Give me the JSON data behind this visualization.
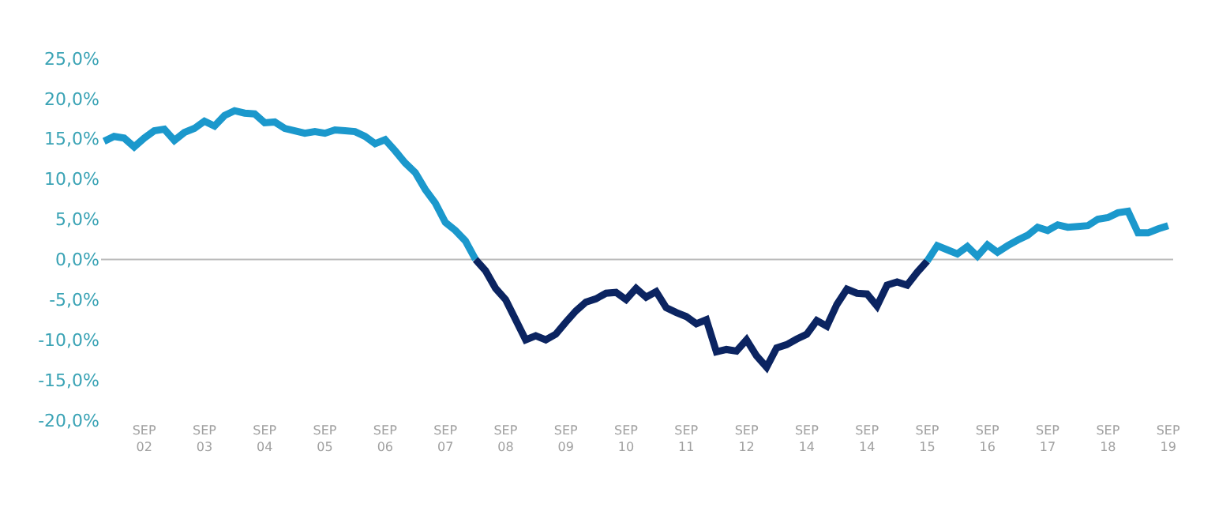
{
  "chart_data": {
    "type": "line",
    "categories": [
      null,
      null,
      null,
      null,
      "SEP\n02",
      null,
      null,
      null,
      null,
      null,
      "SEP\n03",
      null,
      null,
      null,
      null,
      null,
      "SEP\n04",
      null,
      null,
      null,
      null,
      null,
      "SEP\n05",
      null,
      null,
      null,
      null,
      null,
      "SEP\n06",
      null,
      null,
      null,
      null,
      null,
      "SEP\n07",
      null,
      null,
      null,
      null,
      null,
      "SEP\n08",
      null,
      null,
      null,
      null,
      null,
      "SEP\n09",
      null,
      null,
      null,
      null,
      null,
      "SEP\n10",
      null,
      null,
      null,
      null,
      null,
      "SEP\n11",
      null,
      null,
      null,
      null,
      null,
      "SEP\n12",
      null,
      null,
      null,
      null,
      null,
      "SEP\n14",
      null,
      null,
      null,
      null,
      null,
      "SEP\n14",
      null,
      null,
      null,
      null,
      null,
      "SEP\n15",
      null,
      null,
      null,
      null,
      null,
      "SEP\n16",
      null,
      null,
      null,
      null,
      null,
      "SEP\n17",
      null,
      null,
      null,
      null,
      null,
      "SEP\n18",
      null,
      null,
      null,
      null,
      null,
      "SEP\n19"
    ],
    "series": [
      {
        "color": "#1b98cc",
        "values": [
          14.7,
          15.3,
          15.1,
          14.0,
          15.1,
          16.0,
          16.2,
          14.8,
          15.8,
          16.3,
          17.2,
          16.6,
          17.9,
          18.5,
          18.2,
          18.1,
          17.0,
          17.1,
          16.3,
          16.0,
          15.7,
          15.9,
          15.7,
          16.1,
          16.0,
          15.9,
          15.3,
          14.4,
          14.9,
          13.5,
          12.0,
          10.8,
          8.7,
          7.0,
          4.6,
          3.6,
          2.3,
          0.0,
          null,
          null,
          null,
          null,
          null,
          null,
          null,
          null,
          null,
          null,
          null,
          null,
          null,
          null,
          null,
          null,
          null,
          null,
          null,
          null,
          null,
          null,
          null,
          null,
          null,
          null,
          null,
          null,
          null,
          null,
          null,
          null,
          null,
          null,
          null,
          null,
          null,
          null,
          null,
          null,
          null,
          null,
          null,
          null,
          null,
          null,
          null,
          null,
          null,
          null,
          null,
          null,
          null,
          null,
          null,
          null,
          null,
          null,
          null,
          null,
          null,
          null,
          null,
          null,
          null,
          null,
          null,
          null,
          null
        ]
      },
      {
        "color": "#0b2461",
        "values": [
          null,
          null,
          null,
          null,
          null,
          null,
          null,
          null,
          null,
          null,
          null,
          null,
          null,
          null,
          null,
          null,
          null,
          null,
          null,
          null,
          null,
          null,
          null,
          null,
          null,
          null,
          null,
          null,
          null,
          null,
          null,
          null,
          null,
          null,
          null,
          null,
          null,
          0.0,
          -1.4,
          -3.6,
          -5.0,
          -7.5,
          -10.0,
          -9.5,
          -10.0,
          -9.3,
          -7.8,
          -6.4,
          -5.3,
          -4.9,
          -4.2,
          -4.1,
          -5.0,
          -3.6,
          -4.7,
          -4.0,
          -6.0,
          -6.6,
          -7.1,
          -8.0,
          -7.5,
          -11.5,
          -11.2,
          -11.4,
          -10.0,
          -12.0,
          -13.4,
          -11.0,
          -10.6,
          -9.9,
          -9.3,
          -7.6,
          -8.3,
          -5.6,
          -3.7,
          -4.2,
          -4.3,
          -5.8,
          -3.2,
          -2.8,
          -3.2,
          -1.6,
          -0.2,
          null,
          null,
          null,
          null,
          null,
          null,
          null,
          null,
          null,
          null,
          null,
          null,
          null,
          null,
          null,
          null,
          null,
          null,
          null,
          null,
          null,
          null,
          null,
          null
        ]
      },
      {
        "color": "#1b98cc",
        "values": [
          null,
          null,
          null,
          null,
          null,
          null,
          null,
          null,
          null,
          null,
          null,
          null,
          null,
          null,
          null,
          null,
          null,
          null,
          null,
          null,
          null,
          null,
          null,
          null,
          null,
          null,
          null,
          null,
          null,
          null,
          null,
          null,
          null,
          null,
          null,
          null,
          null,
          null,
          null,
          null,
          null,
          null,
          null,
          null,
          null,
          null,
          null,
          null,
          null,
          null,
          null,
          null,
          null,
          null,
          null,
          null,
          null,
          null,
          null,
          null,
          null,
          null,
          null,
          null,
          null,
          null,
          null,
          null,
          null,
          null,
          null,
          null,
          null,
          null,
          null,
          null,
          null,
          null,
          null,
          null,
          null,
          null,
          -0.2,
          1.7,
          1.2,
          0.7,
          1.6,
          0.4,
          1.8,
          0.9,
          1.7,
          2.4,
          3.0,
          4.0,
          3.6,
          4.3,
          4.0,
          4.1,
          4.2,
          5.0,
          5.2,
          5.8,
          6.0,
          3.3,
          3.3,
          3.8,
          4.2
        ]
      }
    ],
    "ylim": [
      -20,
      25
    ],
    "yticks": [
      {
        "value": -20,
        "label": "-20,0%"
      },
      {
        "value": -15,
        "label": "-15,0%"
      },
      {
        "value": -10,
        "label": "-10,0%"
      },
      {
        "value": -5,
        "label": "-5,0%"
      },
      {
        "value": 0,
        "label": "0,0%"
      },
      {
        "value": 5,
        "label": "5,0%"
      },
      {
        "value": 10,
        "label": "10,0%"
      },
      {
        "value": 15,
        "label": "15,0%"
      },
      {
        "value": 20,
        "label": "20,0%"
      },
      {
        "value": 25,
        "label": "25,0%"
      }
    ],
    "ref_lines": [
      {
        "axis": "y",
        "value": 0,
        "color": "#bbbbbb"
      }
    ],
    "marker": "none",
    "line_style": "solid"
  }
}
